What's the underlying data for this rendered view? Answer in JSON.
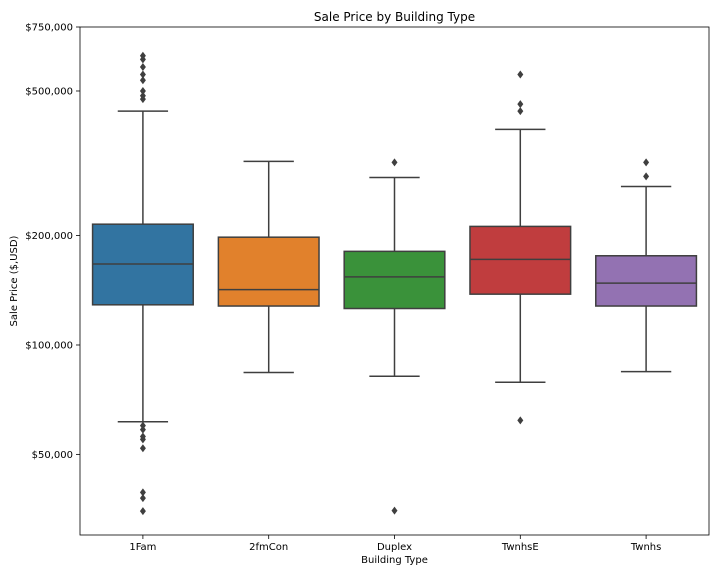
{
  "chart_data": {
    "type": "box",
    "title": "Sale Price by Building Type",
    "xlabel": "Building Type",
    "ylabel": "Sale Price ($,USD)",
    "yscale": "log",
    "ylim": [
      30000,
      750000
    ],
    "yticks": [
      {
        "value": 50000,
        "label": "$50,000"
      },
      {
        "value": 100000,
        "label": "$100,000"
      },
      {
        "value": 200000,
        "label": "$200,000"
      },
      {
        "value": 500000,
        "label": "$500,000"
      },
      {
        "value": 750000,
        "label": "$750,000"
      }
    ],
    "grid": false,
    "legend": "none",
    "boxes": [
      {
        "category": "1Fam",
        "color": "#3274a1",
        "whisker_low": 61500,
        "q1": 129000,
        "median": 167000,
        "q3": 215000,
        "whisker_high": 440000,
        "outliers": [
          34900,
          37900,
          39300,
          52000,
          55000,
          56000,
          58500,
          60000,
          475000,
          485000,
          500000,
          535000,
          555000,
          582000,
          611000,
          625000
        ]
      },
      {
        "category": "2fmCon",
        "color": "#e1812c",
        "whisker_low": 84000,
        "q1": 128000,
        "median": 142000,
        "q3": 198000,
        "whisker_high": 320000,
        "outliers": []
      },
      {
        "category": "Duplex",
        "color": "#3a923a",
        "whisker_low": 82000,
        "q1": 126000,
        "median": 154000,
        "q3": 181000,
        "whisker_high": 289000,
        "outliers": [
          35000,
          318000
        ]
      },
      {
        "category": "TwnhsE",
        "color": "#c03d3e",
        "whisker_low": 79000,
        "q1": 138000,
        "median": 172000,
        "q3": 212000,
        "whisker_high": 392000,
        "outliers": [
          62000,
          440000,
          460000,
          555000
        ]
      },
      {
        "category": "Twnhs",
        "color": "#9372b2",
        "whisker_low": 84500,
        "q1": 128000,
        "median": 148000,
        "q3": 176000,
        "whisker_high": 273000,
        "outliers": [
          291000,
          318000
        ]
      }
    ]
  }
}
